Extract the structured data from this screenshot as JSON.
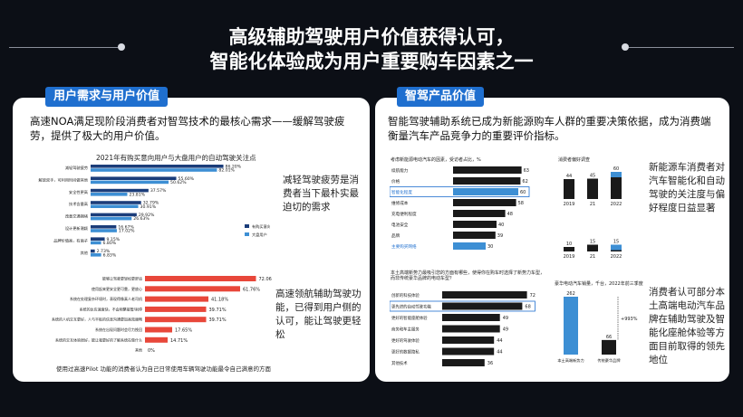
{
  "header": {
    "title_line1": "高级辅助驾驶用户价值获得认可，",
    "title_line2": "智能化体验成为用户重要购车因素之一"
  },
  "left": {
    "tag": "用户需求与用户价值",
    "desc": "高速NOA满足现阶段消费者对智驾技术的最核心需求——缓解驾驶疲劳，提供了极大的用户价值。",
    "chart1_title": "2021年有购买意向用户与大盘用户的自动驾驶关注点",
    "chart1_note1": "减轻驾驶疲劳是消费者当下最朴实最迫切的需求",
    "chart2_note": "高速领航辅助驾驶功能，已得到用户侧的认可，能让驾驶更轻松",
    "footnote": "使用过高速Pilot 功能的消费者认为自己日常使用车辆驾驶功能最令自己满意的方面"
  },
  "right": {
    "tag": "智驾产品价值",
    "desc": "智能驾驶辅助系统已成为新能源购车人群的重要决策依据，成为消费端衡量汽车产品竞争力的重要评价指标。",
    "note1": "新能源车消费者对汽车智能化和自动驾驶的关注度与偏好程度日益显著",
    "note2": "消费者认可部分本土高端电动汽车品牌在辅助驾驶及智能化座舱体验等方面目前取得的领先地位",
    "mc1_title": "考虑新能源电动汽车的因素，受访者占比，%",
    "mc1_sub": "消费者偏好调查",
    "mc2_title": "本土高端新势力最吸引您的方面有哪些，使得你在购车时选择了新势力车型，而非传统豪华品牌的电动车型？",
    "mc3_title": "豪华电动汽车销量，千台，2022年前三季度",
    "mc3_growth": "+993%"
  },
  "chart_data": [
    {
      "type": "bar",
      "title": "2021年有购买意向用户与大盘用户的自动驾驶关注点",
      "categories": [
        "减轻驾驶疲劳",
        "解放双手，可利用时间做其他",
        "安全性更高",
        "技术含量高",
        "改善交通拥堵",
        "设计更新潮颖",
        "品牌价值高，有面子",
        "其他"
      ],
      "series": [
        {
          "name": "有购买意向用户",
          "values": [
            86.2,
            55.6,
            37.57,
            32.79,
            29.92,
            16.67,
            9.15,
            2.73
          ]
        },
        {
          "name": "大盘用户",
          "values": [
            82.01,
            50.62,
            23.81,
            30.91,
            26.63,
            17.02,
            6.8,
            6.83
          ]
        }
      ],
      "labels": {
        "s1": [
          "86.20%",
          "55.60%",
          "37.57%",
          "32.79%",
          "29.92%",
          "16.67%",
          "9.15%",
          "2.73%"
        ],
        "s2": [
          "82.01%",
          "50.62%",
          "23.81%",
          "30.91%",
          "26.63%",
          "17.02%",
          "6.80%",
          "6.83%"
        ]
      },
      "legend": [
        "有购买意向用户",
        "大盘用户"
      ],
      "colors": [
        "#1b3d7a",
        "#3d8fd4"
      ]
    },
    {
      "type": "bar",
      "categories": [
        "能够让驾驶更轻松更舒适",
        "使用起来更安全更可靠，更放心",
        "系统在处理复杂环境时，表现得像真人老司机",
        "系统的反应速度快，不会频繁接管/刹停",
        "系统的人机交互更好，人与平板的信息沟通更加高效顺畅",
        "系统在出现问题时会尽力挽回",
        "系统的交互体验很好，能让我更好的了解系统在做什么",
        "其他"
      ],
      "values": [
        72.06,
        61.76,
        41.18,
        39.71,
        39.71,
        17.65,
        14.71,
        0
      ],
      "labels": [
        "72.06%",
        "61.76%",
        "41.18%",
        "39.71%",
        "39.71%",
        "17.65%",
        "14.71%",
        "0%"
      ],
      "color": "#e8473a"
    },
    {
      "type": "bar",
      "title": "考虑新能源电动汽车的因素，受访者占比，%",
      "categories": [
        "续航能力",
        "价格",
        "智能化程度",
        "维修成本",
        "充电便利程度",
        "电池安全",
        "品牌",
        "主要购买网络"
      ],
      "values": [
        63,
        62,
        60,
        58,
        48,
        40,
        39,
        30
      ],
      "highlight": [
        2,
        7
      ],
      "color": "#1a1a1a",
      "highlight_color": "#3d8fd4"
    },
    {
      "type": "bar",
      "title": "消费者偏好调查",
      "categories": [
        "2019",
        "21",
        "2022"
      ],
      "values": [
        44,
        45,
        60
      ],
      "highlight_last": true
    },
    {
      "type": "bar",
      "categories": [
        "2019",
        "21",
        "2022"
      ],
      "values": [
        10,
        15,
        15
      ],
      "highlight_last": true
    },
    {
      "type": "bar",
      "title": "本土高端新势力最吸引您的方面有哪些",
      "categories": [
        "创新的科技体验",
        "更先进的自动驾驶功能",
        "更好的智能座舱体验",
        "商务和车主服务",
        "更好的驾驶体验",
        "更好的数据隐私",
        "其他技术"
      ],
      "values": [
        72,
        68,
        49,
        49,
        44,
        44,
        36
      ],
      "highlight": [
        1
      ],
      "color": "#1a1a1a"
    },
    {
      "type": "bar",
      "title": "豪华电动汽车销量，千台，2022年前三季度",
      "categories": [
        "本土高端新势力",
        "传统豪华品牌"
      ],
      "values": [
        262,
        66
      ],
      "annotation": "+993%"
    }
  ]
}
